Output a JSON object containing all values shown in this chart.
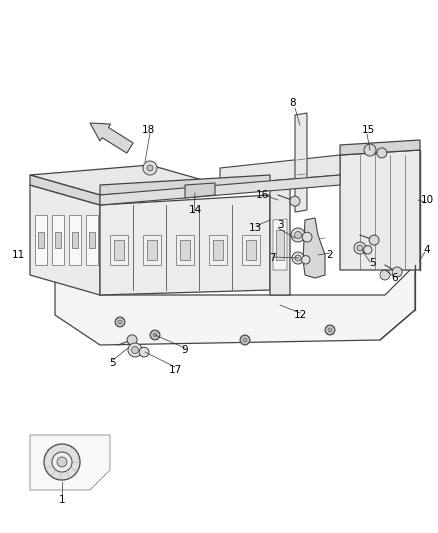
{
  "background_color": "#ffffff",
  "fig_width": 4.38,
  "fig_height": 5.33,
  "dpi": 100,
  "line_color": "#444444",
  "fill_light": "#f0f0f0",
  "fill_mid": "#e0e0e0",
  "fill_dark": "#cccccc",
  "label_fontsize": 7.5,
  "label_color": "#000000"
}
